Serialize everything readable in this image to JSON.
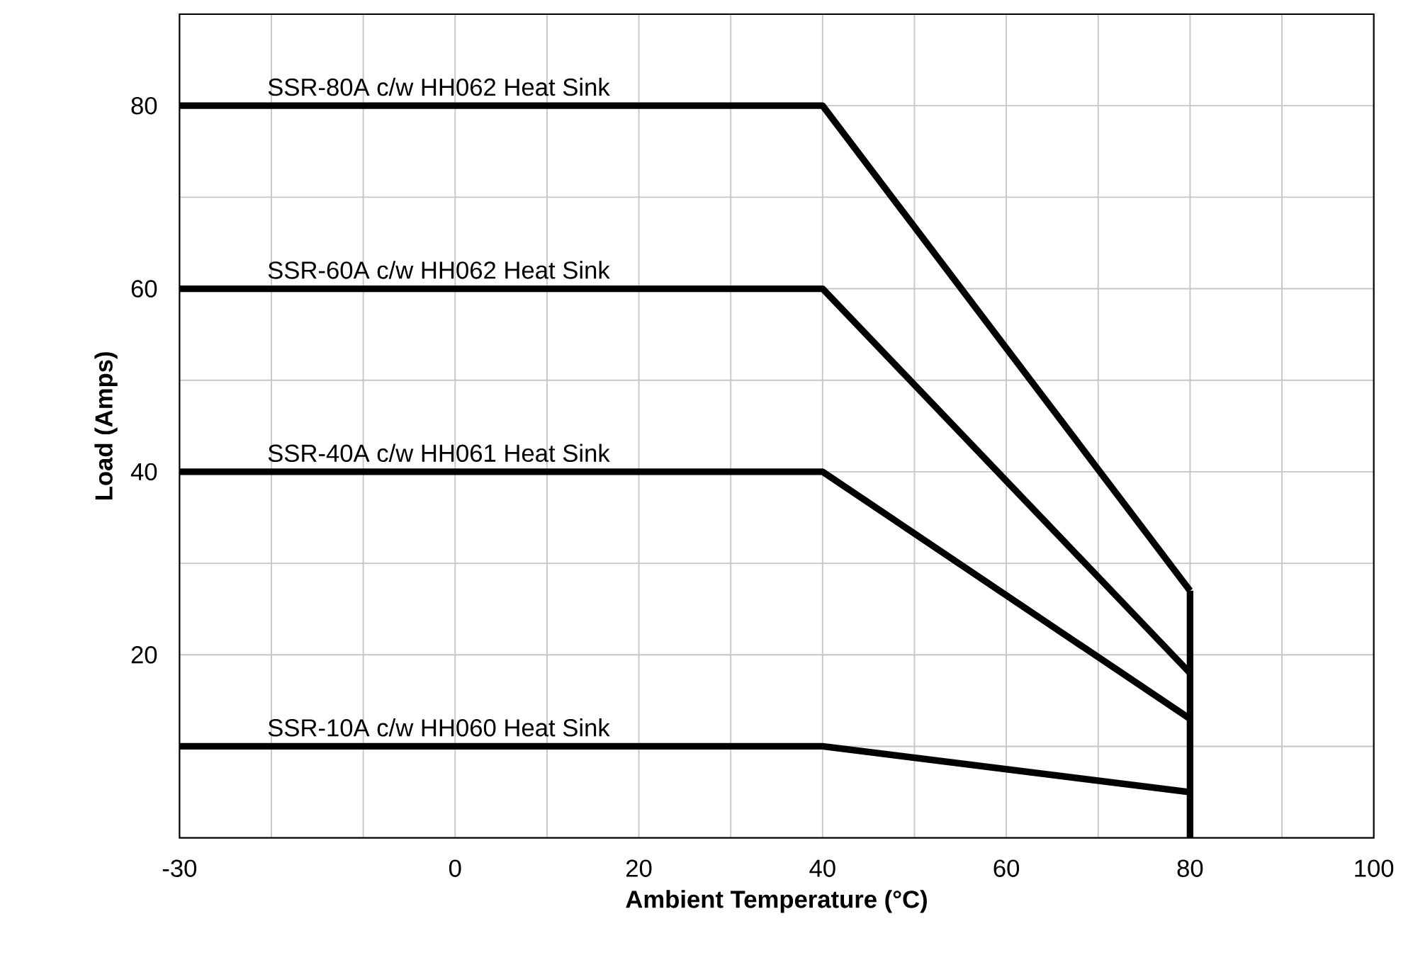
{
  "chart_data": {
    "type": "line",
    "xlabel": "Ambient Temperature (°C)",
    "ylabel": "Load (Amps)",
    "series": [
      {
        "name": "SSR-80A c/w HH062 Heat Sink",
        "color": "#000000",
        "x": [
          -30,
          40,
          80
        ],
        "values": [
          80,
          80,
          27
        ]
      },
      {
        "name": "SSR-60A c/w HH062 Heat Sink",
        "color": "#000000",
        "x": [
          -30,
          40,
          80
        ],
        "values": [
          60,
          60,
          18
        ]
      },
      {
        "name": "SSR-40A c/w HH061 Heat Sink",
        "color": "#000000",
        "x": [
          -30,
          40,
          80
        ],
        "values": [
          40,
          40,
          13
        ]
      },
      {
        "name": "SSR-10A c/w HH060 Heat Sink",
        "color": "#000000",
        "x": [
          -30,
          40,
          80
        ],
        "values": [
          10,
          10,
          5
        ]
      },
      {
        "color": "#000000",
        "x": [
          80,
          80
        ],
        "values": [
          0,
          27
        ]
      }
    ],
    "xlim": [
      -30,
      100
    ],
    "ylim": [
      0,
      90
    ],
    "xticks": [
      -30,
      {
        "value": -20,
        "label": null
      },
      {
        "value": -10,
        "label": null
      },
      0,
      {
        "value": 10,
        "label": null
      },
      20,
      {
        "value": 30,
        "label": null
      },
      40,
      {
        "value": 50,
        "label": null
      },
      60,
      {
        "value": 70,
        "label": null
      },
      80,
      {
        "value": 90,
        "label": null
      },
      100
    ],
    "yticks": [
      {
        "value": 10,
        "label": null
      },
      20,
      {
        "value": 30,
        "label": null
      },
      40,
      {
        "value": 50,
        "label": null
      },
      60,
      {
        "value": 70,
        "label": null
      },
      80
    ],
    "grid": true,
    "marker": "none",
    "line_style": "solid"
  }
}
